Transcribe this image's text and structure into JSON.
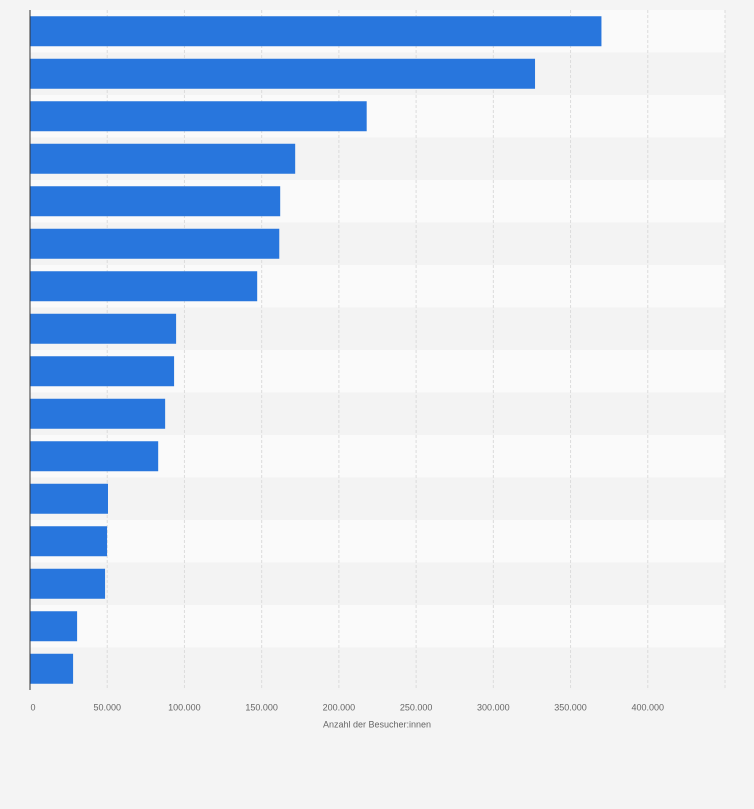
{
  "chart_data": {
    "type": "barh",
    "x_label": "Anzahl der Besucher:innen",
    "categories": [
      null,
      null,
      null,
      null,
      null,
      null,
      null,
      null,
      null,
      null,
      null,
      null,
      null,
      null,
      null,
      null
    ],
    "values": [
      370000,
      327000,
      218000,
      171700,
      162000,
      161400,
      147100,
      94600,
      93300,
      87500,
      83000,
      50500,
      49900,
      48600,
      30500,
      27900
    ],
    "color": "#2876dd",
    "xlim": [
      0,
      450000
    ],
    "xticks": [
      0,
      {
        "value": 50000,
        "label": "50.000"
      },
      {
        "value": 100000,
        "label": "100.000"
      },
      {
        "value": 150000,
        "label": "150.000"
      },
      {
        "value": 200000,
        "label": "200.000"
      },
      {
        "value": 250000,
        "label": "250.000"
      },
      {
        "value": 300000,
        "label": "300.000"
      },
      {
        "value": 350000,
        "label": "350.000"
      },
      {
        "value": 400000,
        "label": "400.000"
      }
    ],
    "grid": true
  }
}
